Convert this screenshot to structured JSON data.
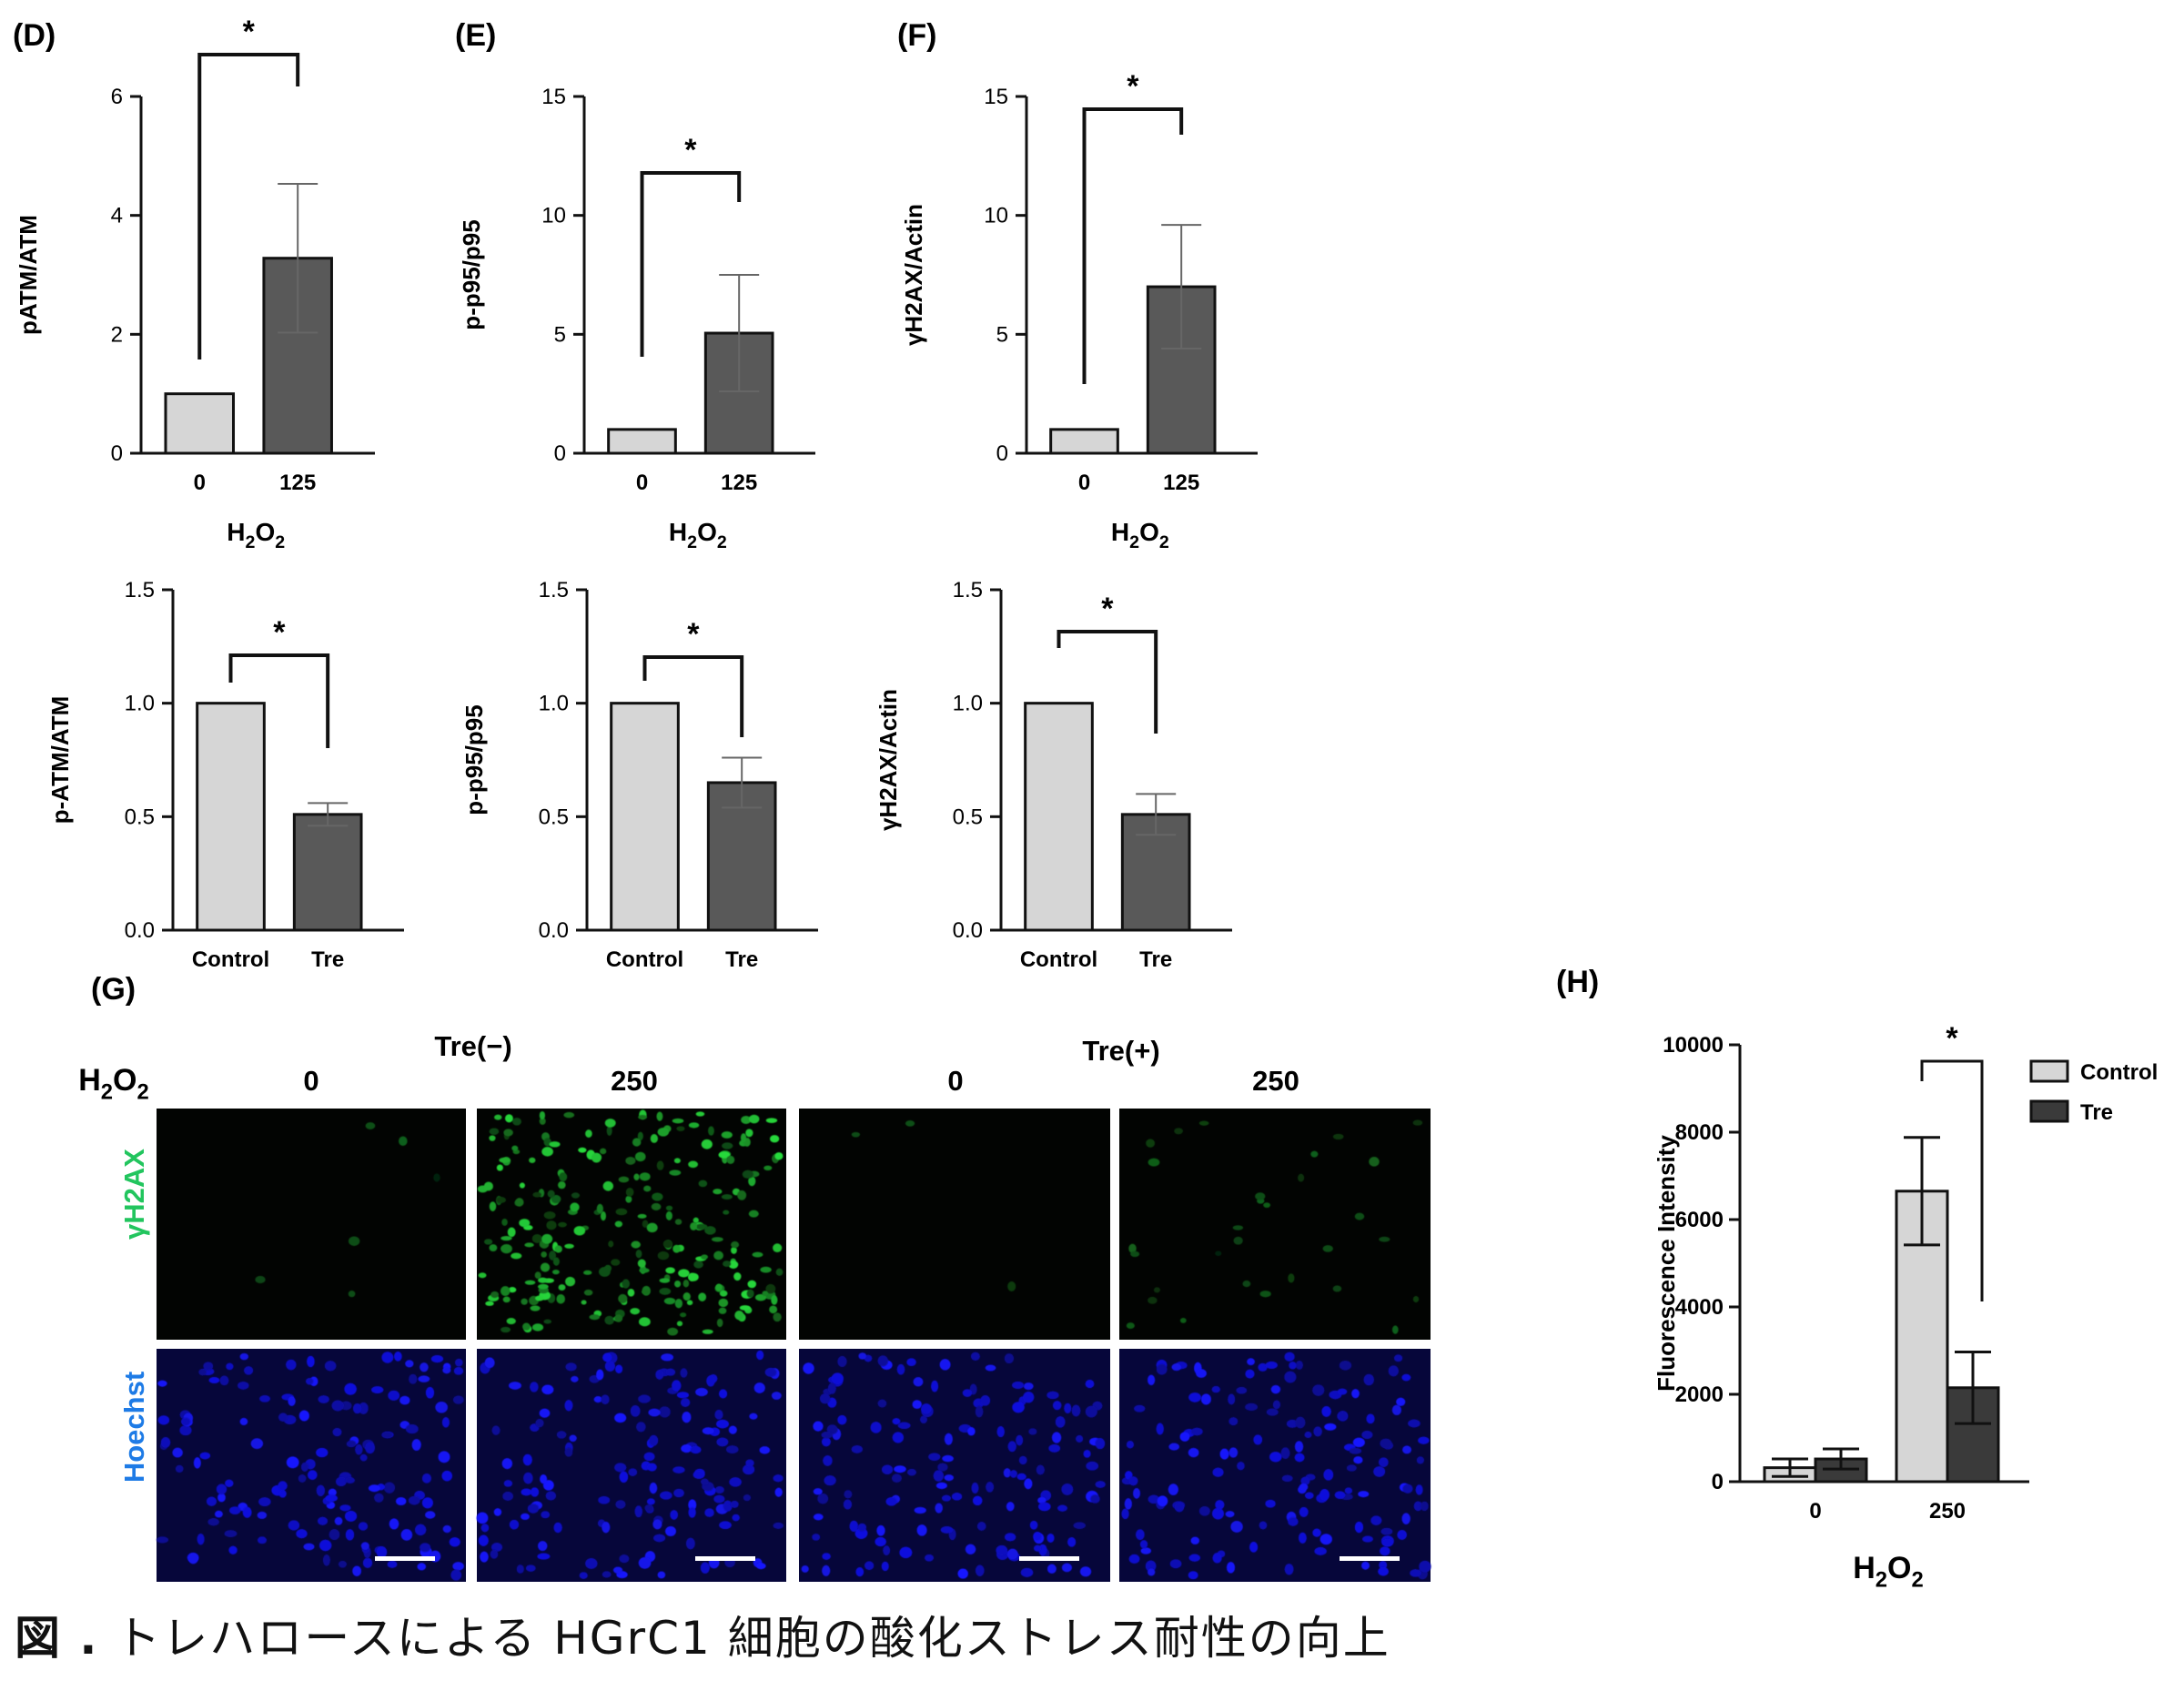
{
  "panels": [
    {
      "letter": "(D)",
      "ylabel": "pATM/ATM",
      "xlabel_main": "H",
      "xlabel_sub1": "2",
      "xlabel_mid": "O",
      "xlabel_sub2": "2",
      "categories": [
        "0",
        "125"
      ],
      "values": [
        1.0,
        3.28
      ],
      "errors": [
        0,
        1.25
      ],
      "ylim": [
        0,
        6
      ],
      "yticks": [
        "0",
        "2",
        "4",
        "6"
      ],
      "significance": "*"
    },
    {
      "letter": "(E)",
      "ylabel": "p-p95/p95",
      "xlabel_main": "H",
      "xlabel_sub1": "2",
      "xlabel_mid": "O",
      "xlabel_sub2": "2",
      "categories": [
        "0",
        "125"
      ],
      "values": [
        1.0,
        5.05
      ],
      "errors": [
        0,
        2.45
      ],
      "ylim": [
        0,
        15
      ],
      "yticks": [
        "0",
        "5",
        "10",
        "15"
      ],
      "significance": "*"
    },
    {
      "letter": "(F)",
      "ylabel": "γH2AX/Actin",
      "xlabel_main": "H",
      "xlabel_sub1": "2",
      "xlabel_mid": "O",
      "xlabel_sub2": "2",
      "categories": [
        "0",
        "125"
      ],
      "values": [
        1.0,
        7.0
      ],
      "errors": [
        0,
        2.6
      ],
      "ylim": [
        0,
        15
      ],
      "yticks": [
        "0",
        "5",
        "10",
        "15"
      ],
      "significance": "*"
    },
    {
      "letter": "",
      "ylabel": "p-ATM/ATM",
      "categories": [
        "Control",
        "Tre"
      ],
      "values": [
        1.0,
        0.51
      ],
      "errors": [
        0,
        0.05
      ],
      "ylim": [
        0,
        1.5
      ],
      "yticks": [
        "0.0",
        "0.5",
        "1.0",
        "1.5"
      ],
      "significance": "*"
    },
    {
      "letter": "",
      "ylabel": "p-p95/p95",
      "categories": [
        "Control",
        "Tre"
      ],
      "values": [
        1.0,
        0.65
      ],
      "errors": [
        0,
        0.11
      ],
      "ylim": [
        0,
        1.5
      ],
      "yticks": [
        "0.0",
        "0.5",
        "1.0",
        "1.5"
      ],
      "significance": "*"
    },
    {
      "letter": "",
      "ylabel": "γH2AX/Actin",
      "categories": [
        "Control",
        "Tre"
      ],
      "values": [
        1.0,
        0.51
      ],
      "errors": [
        0,
        0.09
      ],
      "ylim": [
        0,
        1.5
      ],
      "yticks": [
        "0.0",
        "0.5",
        "1.0",
        "1.5"
      ],
      "significance": "*"
    }
  ],
  "microscopy": {
    "letter": "(G)",
    "h2o2_label_main": "H",
    "h2o2_sub1": "2",
    "h2o2_mid": "O",
    "h2o2_sub2": "2",
    "group_neg": "Tre(−)",
    "group_pos": "Tre(+)",
    "doses": [
      "0",
      "250",
      "0",
      "250"
    ],
    "row1_label": "γH2AX",
    "row2_label": "Hoechst",
    "colors": {
      "gamma": "#22c55e",
      "hoechst": "#1e7be6"
    }
  },
  "chart_data": {
    "type": "bar",
    "letter": "(H)",
    "categories": [
      "0",
      "250"
    ],
    "series": [
      {
        "name": "Control",
        "values": [
          320,
          6650
        ],
        "errors": [
          200,
          1230
        ],
        "color": "#d6d6d6"
      },
      {
        "name": "Tre",
        "values": [
          520,
          2150
        ],
        "errors": [
          230,
          820
        ],
        "color": "#3a3a3a"
      }
    ],
    "ylabel": "Fluorescence Intensity",
    "xlabel_main": "H",
    "xlabel_sub1": "2",
    "xlabel_mid": "O",
    "xlabel_sub2": "2",
    "ylim": [
      0,
      10000
    ],
    "yticks": [
      "0",
      "2000",
      "4000",
      "6000",
      "8000",
      "10000"
    ],
    "significance": "*",
    "legend": "right"
  },
  "caption": {
    "bold": "図 .",
    "text": " トレハロースによる HGrC1 細胞の酸化ストレス耐性の向上"
  },
  "colors": {
    "light_bar": "#d6d6d6",
    "dark_bar": "#595959"
  }
}
